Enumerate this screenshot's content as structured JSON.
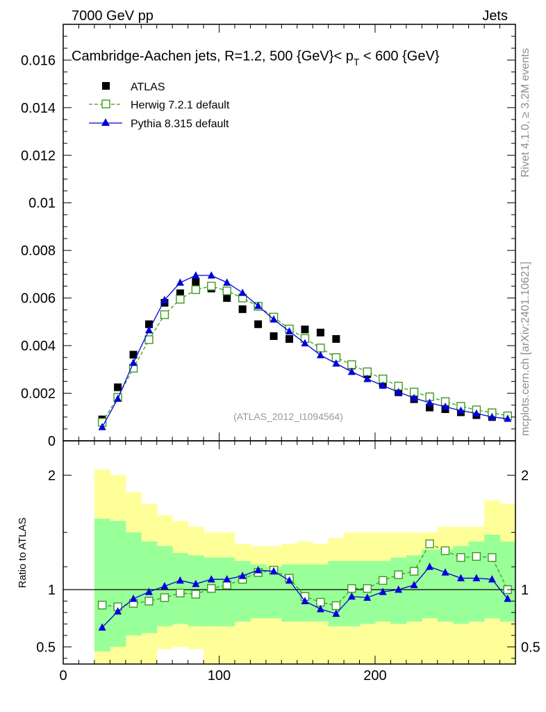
{
  "header": {
    "left": "7000 GeV pp",
    "right": "Jets"
  },
  "side_labels": {
    "rivet": "Rivet 4.1.0, ≥ 3.2M events",
    "mcplots": "mcplots.cern.ch [arXiv:2401.10621]"
  },
  "chart_data": [
    {
      "type": "scatter",
      "title": "Cambridge-Aachen jets, R=1.2, 500 {GeV}< p",
      "title_sub": "T",
      "title_tail": " < 600 {GeV}",
      "watermark": "(ATLAS_2012_I1094564)",
      "xlim": [
        0,
        290
      ],
      "ylim": [
        0,
        0.0175
      ],
      "yticks": [
        0,
        0.002,
        0.004,
        0.006,
        0.008,
        0.01,
        0.012,
        0.014,
        0.016
      ],
      "ytick_labels": [
        "0",
        "0.002",
        "0.004",
        "0.006",
        "0.008",
        "0.01",
        "0.012",
        "0.014",
        "0.016"
      ],
      "legend": [
        "ATLAS",
        "Herwig 7.2.1 default",
        "Pythia 8.315 default"
      ],
      "x": [
        25,
        35,
        45,
        55,
        65,
        75,
        85,
        95,
        105,
        115,
        125,
        135,
        145,
        155,
        165,
        175,
        185,
        195,
        205,
        215,
        225,
        235,
        245,
        255,
        265,
        275,
        285
      ],
      "series": [
        {
          "name": "ATLAS",
          "marker": "square-filled",
          "color": "#000000",
          "values": [
            0.0009,
            0.00225,
            0.00362,
            0.0049,
            0.0058,
            0.0062,
            0.00668,
            0.0064,
            0.006,
            0.00553,
            0.0049,
            0.0044,
            0.00428,
            0.00468,
            0.00455,
            0.00428,
            0.00316,
            0.0028,
            0.0024,
            0.00204,
            0.00175,
            0.0014,
            0.00133,
            0.0012,
            0.00108,
            0.001,
            0.00103
          ]
        },
        {
          "name": "Herwig 7.2.1 default",
          "marker": "square-open",
          "color": "#3a9a1e",
          "dash": "dashed",
          "values": [
            0.00078,
            0.00183,
            0.00305,
            0.00425,
            0.0053,
            0.00595,
            0.00635,
            0.0065,
            0.0063,
            0.006,
            0.00565,
            0.0052,
            0.0047,
            0.0043,
            0.0039,
            0.0035,
            0.0032,
            0.0029,
            0.0026,
            0.0023,
            0.00205,
            0.00185,
            0.00165,
            0.00145,
            0.0013,
            0.00118,
            0.00105
          ]
        },
        {
          "name": "Pythia 8.315 default",
          "marker": "triangle-filled",
          "color": "#0000dd",
          "values": [
            0.00058,
            0.00177,
            0.00328,
            0.00465,
            0.00592,
            0.00665,
            0.00695,
            0.00695,
            0.00665,
            0.00622,
            0.00567,
            0.0051,
            0.0046,
            0.0041,
            0.0036,
            0.00325,
            0.0029,
            0.0026,
            0.00232,
            0.00205,
            0.0018,
            0.0016,
            0.00143,
            0.00127,
            0.00115,
            0.001,
            0.00093
          ]
        }
      ]
    },
    {
      "type": "ratio",
      "ylabel": "Ratio to ATLAS",
      "xlim": [
        0,
        290
      ],
      "ylim": [
        0.35,
        2.3
      ],
      "yticks": [
        0.5,
        1,
        2
      ],
      "ytick_labels": [
        "0.5",
        "1",
        "2"
      ],
      "xticks": [
        0,
        100,
        200
      ],
      "xtick_labels": [
        "0",
        "100",
        "200"
      ],
      "reference_line": 1,
      "bin_edges": [
        20,
        30,
        40,
        50,
        60,
        70,
        80,
        90,
        100,
        110,
        120,
        130,
        140,
        150,
        160,
        170,
        180,
        190,
        200,
        210,
        220,
        230,
        240,
        250,
        260,
        270,
        280,
        290
      ],
      "band_outer": {
        "color": "#ffff99",
        "low": [
          0.35,
          0.35,
          0.35,
          0.35,
          0.48,
          0.5,
          0.48,
          0.35,
          0.35,
          0.35,
          0.35,
          0.35,
          0.35,
          0.35,
          0.35,
          0.35,
          0.35,
          0.35,
          0.35,
          0.35,
          0.35,
          0.35,
          0.35,
          0.35,
          0.35,
          0.35,
          0.35
        ],
        "high": [
          2.05,
          2.0,
          1.85,
          1.75,
          1.65,
          1.6,
          1.55,
          1.5,
          1.5,
          1.4,
          1.38,
          1.38,
          1.4,
          1.42,
          1.4,
          1.45,
          1.5,
          1.5,
          1.5,
          1.5,
          1.5,
          1.5,
          1.55,
          1.55,
          1.55,
          1.78,
          1.75
        ]
      },
      "band_inner": {
        "color": "#99ff99",
        "low": [
          0.46,
          0.5,
          0.6,
          0.62,
          0.68,
          0.7,
          0.68,
          0.68,
          0.68,
          0.72,
          0.75,
          0.75,
          0.72,
          0.72,
          0.72,
          0.68,
          0.68,
          0.7,
          0.72,
          0.7,
          0.72,
          0.75,
          0.72,
          0.7,
          0.72,
          0.75,
          0.72
        ],
        "high": [
          1.62,
          1.6,
          1.5,
          1.42,
          1.38,
          1.32,
          1.3,
          1.28,
          1.28,
          1.25,
          1.22,
          1.2,
          1.22,
          1.22,
          1.22,
          1.25,
          1.25,
          1.25,
          1.25,
          1.28,
          1.3,
          1.35,
          1.35,
          1.38,
          1.42,
          1.48,
          1.42
        ]
      },
      "x": [
        25,
        35,
        45,
        55,
        65,
        75,
        85,
        95,
        105,
        115,
        125,
        135,
        145,
        155,
        165,
        175,
        185,
        195,
        205,
        215,
        225,
        235,
        245,
        255,
        265,
        275,
        285
      ],
      "series": [
        {
          "name": "Herwig 7.2.1 default",
          "marker": "square-open",
          "color": "#3a9a1e",
          "dash": "dashed",
          "values": [
            0.865,
            0.85,
            0.88,
            0.9,
            0.93,
            0.97,
            0.96,
            1.01,
            1.04,
            1.09,
            1.15,
            1.17,
            1.1,
            0.94,
            0.89,
            0.86,
            1.01,
            1.01,
            1.08,
            1.13,
            1.16,
            1.4,
            1.34,
            1.28,
            1.29,
            1.28,
            1.0
          ]
        },
        {
          "name": "Pythia 8.315 default",
          "marker": "triangle-filled",
          "color": "#0000dd",
          "values": [
            0.67,
            0.81,
            0.92,
            0.98,
            1.03,
            1.08,
            1.05,
            1.09,
            1.09,
            1.12,
            1.17,
            1.16,
            1.08,
            0.9,
            0.83,
            0.79,
            0.94,
            0.93,
            0.98,
            1.0,
            1.04,
            1.2,
            1.15,
            1.1,
            1.1,
            1.09,
            0.92
          ]
        }
      ]
    }
  ]
}
